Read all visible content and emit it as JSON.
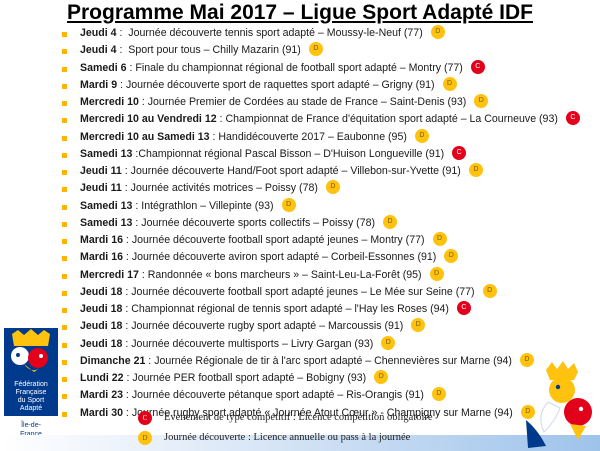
{
  "title": "Programme Mai 2017 – Ligue Sport Adapté IDF",
  "events": [
    {
      "day": "Jeudi 4",
      "sep": " :  ",
      "text": "Journée découverte tennis sport adapté – Moussy-le-Neuf (77)",
      "badge": "D",
      "type": "d"
    },
    {
      "day": "Jeudi 4",
      "sep": " :  ",
      "text": "Sport pour tous – Chilly Mazarin (91)",
      "badge": "D",
      "type": "d"
    },
    {
      "day": "Samedi 6",
      "sep": " : ",
      "text": "Finale du championnat régional de football sport adapté – Montry (77)",
      "badge": "C",
      "type": "c"
    },
    {
      "day": "Mardi 9",
      "sep": " : ",
      "text": "Journée découverte sport de raquettes sport adapté – Grigny (91)",
      "badge": "D",
      "type": "d"
    },
    {
      "day": "Mercredi 10",
      "sep": " : ",
      "text": "Journée Premier de  Cordées au stade de France – Saint-Denis (93)",
      "badge": "D",
      "type": "d"
    },
    {
      "day": "Mercredi 10 au Vendredi 12",
      "sep": " : ",
      "text": "Championnat de France d'équitation sport adapté – La Courneuve (93)",
      "badge": "C",
      "type": "c"
    },
    {
      "day": "Mercredi 10 au Samedi 13",
      "sep": " : ",
      "text": "Handidécouverte 2017 – Eaubonne (95)",
      "badge": "D",
      "type": "d"
    },
    {
      "day": "Samedi 13",
      "sep": " :",
      "text": "Championnat régional Pascal Bisson – D'Huison Longueville (91)",
      "badge": "C",
      "type": "c"
    },
    {
      "day": "Jeudi 11",
      "sep": " : ",
      "text": "Journée découverte Hand/Foot sport adapté – Villebon-sur-Yvette (91)",
      "badge": "D",
      "type": "d"
    },
    {
      "day": "Jeudi 11",
      "sep": " : ",
      "text": "Journée activités motrices – Poissy (78)",
      "badge": "D",
      "type": "d"
    },
    {
      "day": "Samedi 13",
      "sep": " : ",
      "text": "Intégrathlon – Villepinte (93)",
      "badge": "D",
      "type": "d"
    },
    {
      "day": "Samedi 13",
      "sep": " : ",
      "text": "Journée découverte sports collectifs – Poissy (78)",
      "badge": "D",
      "type": "d"
    },
    {
      "day": "Mardi 16",
      "sep": " : ",
      "text": "Journée découverte football sport adapté jeunes – Montry (77)",
      "badge": "D",
      "type": "d"
    },
    {
      "day": "Mardi 16",
      "sep": " : ",
      "text": "Journée découverte aviron sport adapté – Corbeil-Essonnes (91)",
      "badge": "D",
      "type": "d"
    },
    {
      "day": "Mercredi 17",
      "sep": " : ",
      "text": "Randonnée « bons marcheurs » – Saint-Leu-La-Forêt (95)",
      "badge": "D",
      "type": "d"
    },
    {
      "day": "Jeudi 18",
      "sep": " : ",
      "text": "Journée découverte football sport adapté jeunes – Le Mée sur Seine (77)",
      "badge": "D",
      "type": "d"
    },
    {
      "day": "Jeudi 18",
      "sep": " : ",
      "text": "Championnat régional de tennis sport adapté – l'Hay les Roses (94)",
      "badge": "C",
      "type": "c"
    },
    {
      "day": "Jeudi 18",
      "sep": " : ",
      "text": "Journée découverte rugby sport adapté – Marcoussis (91)",
      "badge": "D",
      "type": "d"
    },
    {
      "day": "Jeudi 18",
      "sep": " : ",
      "text": "Journée découverte multisports – Livry Gargan (93)",
      "badge": "D",
      "type": "d"
    },
    {
      "day": "Dimanche 21",
      "sep": " : ",
      "text": "Journée Régionale de tir à l'arc sport adapté – Chennevières sur Marne (94)",
      "badge": "D",
      "type": "d"
    },
    {
      "day": "Lundi 22",
      "sep": " : ",
      "text": "Journée  PER football sport adapté – Bobigny (93)",
      "badge": "D",
      "type": "d"
    },
    {
      "day": "Mardi 23",
      "sep": " : ",
      "text": "Journée découverte pétanque sport adapté – Ris-Orangis (91)",
      "badge": "D",
      "type": "d"
    },
    {
      "day": "Mardi 30",
      "sep": " : ",
      "text": "Journée rugby sport adapté « Journée Atout Cœur » - Champigny sur Marne (94)",
      "badge": "D",
      "type": "d"
    }
  ],
  "legend": [
    {
      "badge": "C",
      "type": "c",
      "text": "Evènement de type compétitif : Licence compétition obligatoire"
    },
    {
      "badge": "D",
      "type": "d",
      "text": "Journée découverte : Licence annuelle ou pass à la journée"
    }
  ],
  "logo": {
    "lines": [
      "Fédération",
      "Française",
      "du Sport",
      "Adapté",
      "Île-de-",
      "France"
    ]
  },
  "colors": {
    "competitive": "#e2001a",
    "discovery": "#ffc20e",
    "bullet": "#ffb400",
    "logo_blue": "#003a8c"
  }
}
